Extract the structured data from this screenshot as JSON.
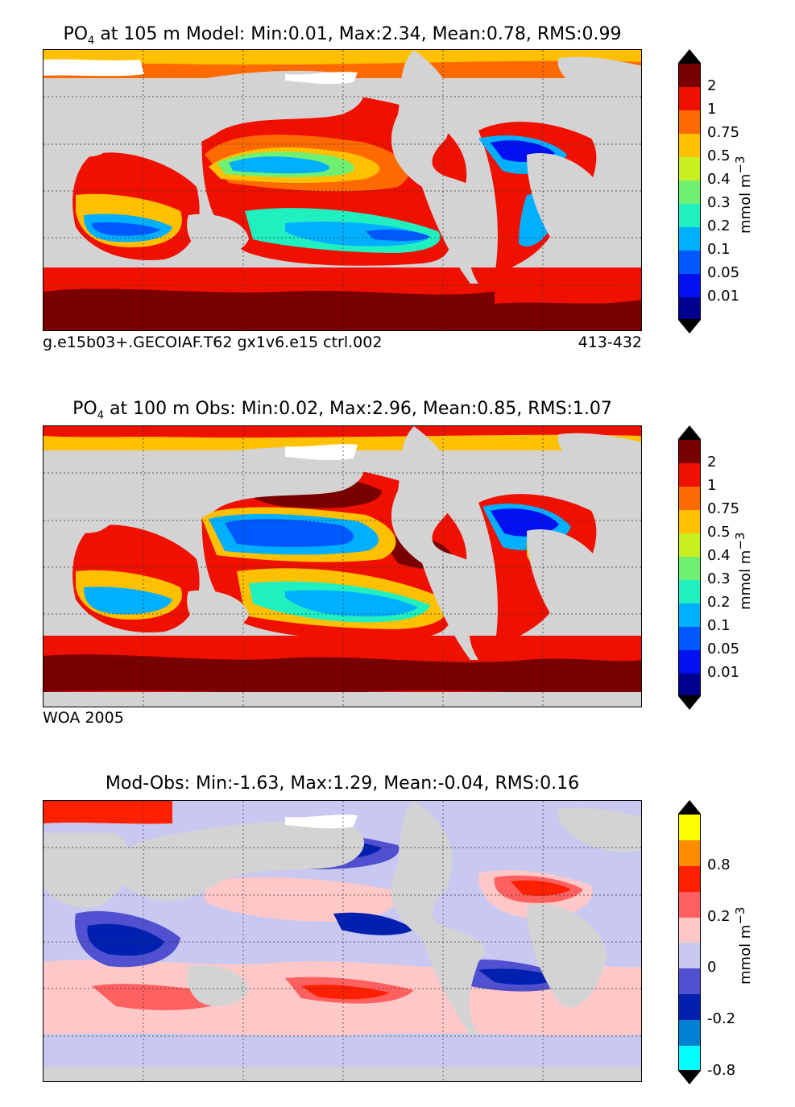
{
  "panels": [
    {
      "title_prefix": "PO",
      "title_sub": "4",
      "title_rest": " at 105 m Model: Min:0.01, Max:2.34, Mean:0.78, RMS:0.99",
      "footer_left": "g.e15b03+.GECOIAF.T62 gx1v6.e15 ctrl.002",
      "footer_right": "413-432",
      "colorbar": {
        "labels": [
          "2",
          "1",
          "0.75",
          "0.5",
          "0.4",
          "0.3",
          "0.2",
          "0.1",
          "0.05",
          "0.01"
        ],
        "colors": [
          "#7a0000",
          "#f01000",
          "#ff6a00",
          "#ffc000",
          "#c8f020",
          "#70f070",
          "#20f0c0",
          "#00b0ff",
          "#0058ff",
          "#0010f0",
          "#000090"
        ],
        "unit": "mmol m",
        "unit_sup": "−3"
      }
    },
    {
      "title_prefix": "PO",
      "title_sub": "4",
      "title_rest": " at 100 m Obs: Min:0.02, Max:2.96, Mean:0.85, RMS:1.07",
      "footer_left": "WOA 2005",
      "footer_right": "",
      "colorbar": {
        "labels": [
          "2",
          "1",
          "0.75",
          "0.5",
          "0.4",
          "0.3",
          "0.2",
          "0.1",
          "0.05",
          "0.01"
        ],
        "colors": [
          "#7a0000",
          "#f01000",
          "#ff6a00",
          "#ffc000",
          "#c8f020",
          "#70f070",
          "#20f0c0",
          "#00b0ff",
          "#0058ff",
          "#0010f0",
          "#000090"
        ],
        "unit": "mmol m",
        "unit_sup": "−3"
      }
    },
    {
      "title_prefix": "Mod-Obs: Min:-1.63, Max:1.29, Mean:-0.04, RMS:0.16",
      "title_sub": "",
      "title_rest": "",
      "footer_left": "",
      "footer_right": "",
      "colorbar": {
        "labels": [
          "0.8",
          "0.2",
          "0",
          "-0.2",
          "-0.8"
        ],
        "colors": [
          "#ffff00",
          "#ff8c00",
          "#ff2000",
          "#ff6060",
          "#ffc8c8",
          "#c8c8f0",
          "#5050d0",
          "#0020b0",
          "#0080d0",
          "#00ffff"
        ],
        "unit": "mmol m",
        "unit_sup": "−3"
      }
    }
  ],
  "colors": {
    "land": "#d3d3d3",
    "ice": "#ffffff"
  }
}
